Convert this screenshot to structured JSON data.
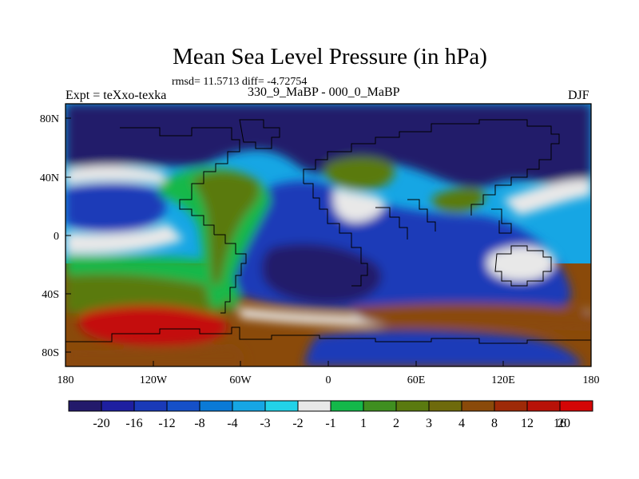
{
  "title": "Mean Sea Level Pressure (in hPa)",
  "stats_line": "rmsd= 11.5713 diff= -4.72754",
  "experiment_label": "Expt = teXxo-texka",
  "difference_label": "330_9_MaBP - 000_0_MaBP",
  "season_label": "DJF",
  "axes": {
    "x_ticks": [
      "180",
      "120W",
      "60W",
      "0",
      "60E",
      "120E",
      "180"
    ],
    "y_ticks": [
      "80N",
      "40N",
      "0",
      "40S",
      "80S"
    ]
  },
  "colorbar": {
    "colors": [
      "#231a6b",
      "#1e1fa0",
      "#1a3ab8",
      "#1550c8",
      "#0a7ad6",
      "#16a6e4",
      "#22d2e8",
      "#e8e8e8",
      "#14b84a",
      "#3f8f20",
      "#5a7a10",
      "#6e6a0c",
      "#8a4a0a",
      "#9e2a08",
      "#b81208",
      "#d40606"
    ],
    "labels": [
      "-20",
      "-16",
      "-12",
      "-8",
      "-4",
      "-3",
      "-2",
      "-1",
      "1",
      "2",
      "3",
      "4",
      "8",
      "12",
      "16",
      "20"
    ]
  },
  "map_colors": {
    "deep_low": "#231a6b",
    "low": "#1a3ab8",
    "mid_low": "#16a6e4",
    "neutral": "#e8e8e8",
    "green": "#14b84a",
    "olive": "#5a7a10",
    "brown": "#8a4a0a",
    "red": "#c40e08"
  }
}
